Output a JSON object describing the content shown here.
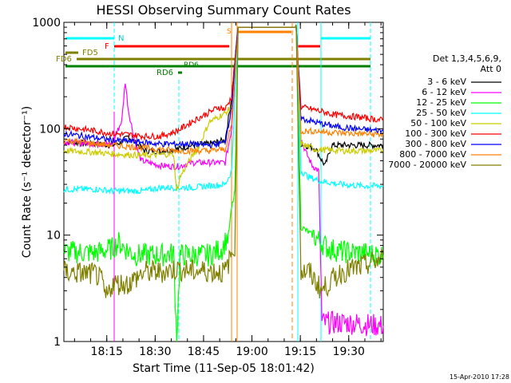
{
  "chart_data": {
    "type": "line",
    "title": "HESSI Observing Summary Count Rates",
    "xlabel": "Start Time (11-Sep-05 18:01:42)",
    "ylabel": "Count Rate (s⁻¹ detector⁻¹)",
    "y_scale": "log",
    "ylim": [
      1,
      1000
    ],
    "xlim_minutes": [
      0,
      99
    ],
    "x_ticks": [
      {
        "label": "18:15",
        "min": 13.3
      },
      {
        "label": "18:30",
        "min": 28.3
      },
      {
        "label": "18:45",
        "min": 43.3
      },
      {
        "label": "19:00",
        "min": 58.3
      },
      {
        "label": "19:15",
        "min": 73.3
      },
      {
        "label": "19:30",
        "min": 88.3
      }
    ],
    "y_ticks": [
      {
        "label": "1",
        "v": 1
      },
      {
        "label": "10",
        "v": 10
      },
      {
        "label": "100",
        "v": 100
      },
      {
        "label": "1000",
        "v": 1000
      }
    ],
    "legend_title": [
      "Det 1,3,4,5,6,9,",
      "Att 0"
    ],
    "series": [
      {
        "name": "3 - 6 keV",
        "color": "#000000",
        "pts": [
          [
            0,
            75
          ],
          [
            10,
            72
          ],
          [
            15,
            70
          ],
          [
            18,
            75
          ],
          [
            20,
            85
          ],
          [
            22,
            75
          ],
          [
            25,
            62
          ],
          [
            30,
            62
          ],
          [
            35,
            64
          ],
          [
            40,
            70
          ],
          [
            45,
            72
          ],
          [
            50,
            78
          ],
          [
            52,
            200
          ],
          [
            54,
            900
          ],
          [
            72,
            900
          ],
          [
            73.5,
            72
          ],
          [
            76,
            68
          ],
          [
            78,
            65
          ],
          [
            80,
            50
          ],
          [
            81,
            45
          ],
          [
            83,
            70
          ],
          [
            99,
            70
          ]
        ]
      },
      {
        "name": "6 - 12 keV",
        "color": "#ff00ff",
        "pts": [
          [
            0,
            75
          ],
          [
            10,
            72
          ],
          [
            15,
            72
          ],
          [
            18,
            120
          ],
          [
            19,
            280
          ],
          [
            20,
            150
          ],
          [
            22,
            75
          ],
          [
            24,
            50
          ],
          [
            30,
            45
          ],
          [
            35,
            44
          ],
          [
            40,
            48
          ],
          [
            45,
            48
          ],
          [
            50,
            48
          ],
          [
            52,
            100
          ],
          [
            54,
            900
          ],
          [
            72,
            900
          ],
          [
            73.5,
            80
          ],
          [
            75,
            60
          ],
          [
            77,
            45
          ],
          [
            79,
            40
          ],
          [
            80,
            1.5
          ],
          [
            88,
            1.5
          ],
          [
            99,
            1.4
          ]
        ]
      },
      {
        "name": "12 - 25 keV",
        "color": "#00ff00",
        "pts": [
          [
            0,
            7
          ],
          [
            10,
            6.8
          ],
          [
            15,
            7.5
          ],
          [
            17,
            8.5
          ],
          [
            19,
            7.5
          ],
          [
            22,
            6.5
          ],
          [
            30,
            6.5
          ],
          [
            34,
            6.7
          ],
          [
            35,
            1
          ],
          [
            36,
            6.5
          ],
          [
            45,
            6.5
          ],
          [
            49,
            7.5
          ],
          [
            51,
            10
          ],
          [
            52,
            18
          ],
          [
            53,
            25
          ],
          [
            54,
            900
          ],
          [
            72,
            900
          ],
          [
            73.5,
            12
          ],
          [
            78,
            9.5
          ],
          [
            82,
            7.5
          ],
          [
            86,
            7
          ],
          [
            92,
            6.8
          ],
          [
            99,
            6.5
          ]
        ]
      },
      {
        "name": "25 - 50 keV",
        "color": "#00ffff",
        "pts": [
          [
            0,
            27
          ],
          [
            10,
            27
          ],
          [
            15,
            26
          ],
          [
            20,
            26
          ],
          [
            25,
            26
          ],
          [
            30,
            28
          ],
          [
            35,
            28
          ],
          [
            40,
            28
          ],
          [
            45,
            29
          ],
          [
            50,
            30
          ],
          [
            52,
            40
          ],
          [
            54,
            900
          ],
          [
            72,
            900
          ],
          [
            73.5,
            40
          ],
          [
            76,
            35
          ],
          [
            80,
            32
          ],
          [
            86,
            30
          ],
          [
            92,
            29
          ],
          [
            99,
            29
          ]
        ]
      },
      {
        "name": "50 - 100 keV",
        "color": "#cccc00",
        "pts": [
          [
            0,
            62
          ],
          [
            10,
            60
          ],
          [
            15,
            58
          ],
          [
            20,
            57
          ],
          [
            25,
            56
          ],
          [
            30,
            57
          ],
          [
            34,
            58
          ],
          [
            35,
            25
          ],
          [
            36,
            35
          ],
          [
            38,
            45
          ],
          [
            42,
            70
          ],
          [
            45,
            115
          ],
          [
            48,
            130
          ],
          [
            50,
            140
          ],
          [
            52,
            160
          ],
          [
            54,
            900
          ],
          [
            72,
            900
          ],
          [
            73.5,
            72
          ],
          [
            78,
            64
          ],
          [
            82,
            63
          ],
          [
            88,
            62
          ],
          [
            99,
            62
          ]
        ]
      },
      {
        "name": "100 - 300 keV",
        "color": "#ff0000",
        "pts": [
          [
            0,
            105
          ],
          [
            10,
            95
          ],
          [
            15,
            90
          ],
          [
            20,
            88
          ],
          [
            25,
            85
          ],
          [
            30,
            85
          ],
          [
            35,
            95
          ],
          [
            40,
            118
          ],
          [
            45,
            142
          ],
          [
            48,
            160
          ],
          [
            50,
            152
          ],
          [
            52,
            200
          ],
          [
            54,
            900
          ],
          [
            72,
            900
          ],
          [
            73.5,
            160
          ],
          [
            78,
            150
          ],
          [
            84,
            135
          ],
          [
            90,
            130
          ],
          [
            99,
            120
          ]
        ]
      },
      {
        "name": "300 - 800 keV",
        "color": "#0000ff",
        "pts": [
          [
            0,
            90
          ],
          [
            10,
            82
          ],
          [
            15,
            78
          ],
          [
            20,
            76
          ],
          [
            25,
            74
          ],
          [
            30,
            72
          ],
          [
            35,
            72
          ],
          [
            40,
            72
          ],
          [
            45,
            70
          ],
          [
            48,
            72
          ],
          [
            50,
            75
          ],
          [
            52,
            160
          ],
          [
            54,
            900
          ],
          [
            72,
            900
          ],
          [
            73.5,
            125
          ],
          [
            78,
            115
          ],
          [
            84,
            105
          ],
          [
            90,
            100
          ],
          [
            99,
            95
          ]
        ]
      },
      {
        "name": "800 - 7000 keV",
        "color": "#ff8000",
        "pts": [
          [
            0,
            78
          ],
          [
            10,
            72
          ],
          [
            15,
            70
          ],
          [
            20,
            68
          ],
          [
            25,
            66
          ],
          [
            30,
            64
          ],
          [
            35,
            62
          ],
          [
            40,
            62
          ],
          [
            45,
            62
          ],
          [
            50,
            64
          ],
          [
            52,
            110
          ],
          [
            54,
            900
          ],
          [
            72,
            900
          ],
          [
            73.5,
            95
          ],
          [
            78,
            95
          ],
          [
            84,
            92
          ],
          [
            90,
            90
          ],
          [
            99,
            88
          ]
        ]
      },
      {
        "name": "7000 - 20000 keV",
        "color": "#808000",
        "pts": [
          [
            0,
            4.5
          ],
          [
            10,
            4.3
          ],
          [
            12,
            3.5
          ],
          [
            13,
            2.5
          ],
          [
            15,
            3.5
          ],
          [
            20,
            3.5
          ],
          [
            25,
            4.5
          ],
          [
            30,
            4.5
          ],
          [
            35,
            4.8
          ],
          [
            40,
            4.6
          ],
          [
            45,
            4.6
          ],
          [
            50,
            4.5
          ],
          [
            53,
            8
          ],
          [
            54,
            900
          ],
          [
            72,
            900
          ],
          [
            73.5,
            4.5
          ],
          [
            76,
            4.5
          ],
          [
            80,
            3
          ],
          [
            82,
            3.5
          ],
          [
            86,
            4.5
          ],
          [
            92,
            5
          ],
          [
            99,
            6
          ]
        ]
      }
    ],
    "markers": [
      {
        "text": "N"
      },
      {
        "text": "F"
      },
      {
        "text": "FD5"
      },
      {
        "text": "FD6"
      },
      {
        "text": "RD6"
      },
      {
        "text": "RD6"
      },
      {
        "text": "S"
      }
    ]
  },
  "footer": {
    "timestamp": "15-Apr-2010 17:28"
  },
  "palette": {
    "saa_cyan": "#00ffff",
    "flare_red": "#ff0000",
    "saa_orange": "#ff8000",
    "decim_olive": "#808000",
    "rd_green": "#008000",
    "night_magenta": "#ff00ff"
  }
}
